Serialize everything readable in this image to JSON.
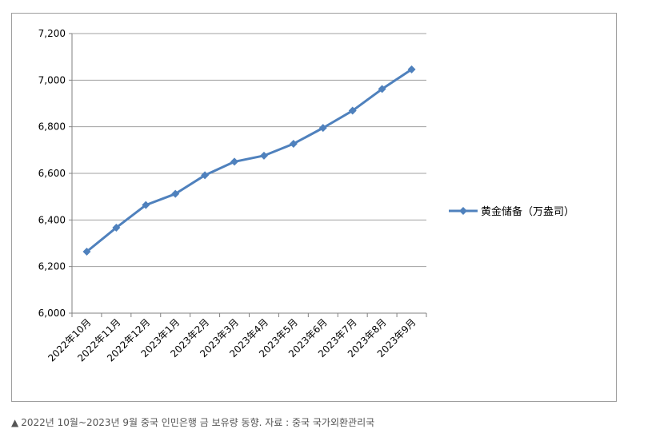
{
  "chart_data": {
    "type": "line",
    "categories": [
      "2022年10月",
      "2022年11月",
      "2022年12月",
      "2023年1月",
      "2023年2月",
      "2023年3月",
      "2023年4月",
      "2023年5月",
      "2023年6月",
      "2023年7月",
      "2023年8月",
      "2023年9月"
    ],
    "series": [
      {
        "name": "黄金储备（万盎司）",
        "values": [
          6264,
          6367,
          6464,
          6512,
          6592,
          6650,
          6676,
          6727,
          6795,
          6869,
          6962,
          7046
        ]
      }
    ],
    "ylim": [
      6000,
      7200
    ],
    "yticks": [
      "6,000",
      "6,200",
      "6,400",
      "6,600",
      "6,800",
      "7,000",
      "7,200"
    ],
    "ytick_values": [
      6000,
      6200,
      6400,
      6600,
      6800,
      7000,
      7200
    ],
    "grid": true,
    "legend_position": "right",
    "colors": {
      "line": "#4f81bd",
      "grid": "#a0a0a0",
      "axis": "#808080"
    }
  },
  "caption": {
    "marker": "▲",
    "text": "2022년 10월~2023년 9월 중국 인민은행 금 보유량 동향. 자료 : 중국 국가외환관리국"
  }
}
